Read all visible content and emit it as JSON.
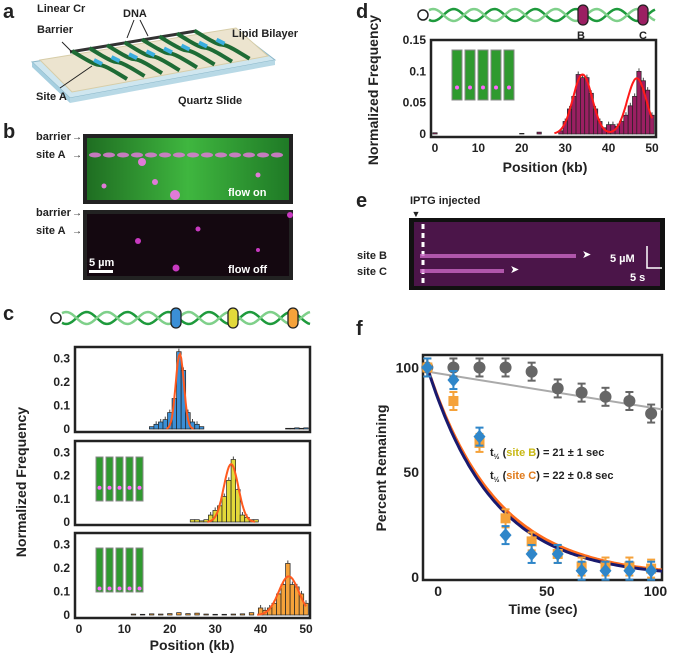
{
  "panels": {
    "a": {
      "label": "a",
      "annotations": {
        "barrier": "Linear Cr",
        "barrier2": "Barrier",
        "dna": "DNA",
        "bilayer": "Lipid Bilayer",
        "site": "Site A",
        "slide": "Quartz Slide"
      }
    },
    "b": {
      "label": "b",
      "barrier": "barrier",
      "site": "site A",
      "top_caption": "flow on",
      "bottom_caption": "flow off",
      "scale_bar": "5 µm"
    },
    "c": {
      "label": "c",
      "site_colors": [
        "#3b8fd6",
        "#e2d93a",
        "#f5a23a"
      ]
    },
    "d": {
      "label": "d",
      "site_b": "B",
      "site_c": "C",
      "site_color": "#9b1f62"
    },
    "e": {
      "label": "e",
      "event": "IPTG injected",
      "site_b": "site B",
      "site_c": "site C",
      "scale_y": "5 µM",
      "scale_x": "5 s"
    },
    "f": {
      "label": "f",
      "t_half": "t",
      "t_half_sub": "½",
      "site_b": "site B",
      "site_c": "site C",
      "stat_b": ") = 21 ± 1 sec",
      "stat_c": ") = 22 ± 0.8 sec",
      "open": " (",
      "site_b_color": "#c8b814",
      "site_c_color": "#e07a1a"
    }
  },
  "chart_data": [
    {
      "type": "bar",
      "panel": "c",
      "subplot": 1,
      "xlabel": "Position (kb)",
      "ylabel": "Normalized Frequency",
      "xlim": [
        0,
        50
      ],
      "ylim": [
        0,
        0.35
      ],
      "xticks": [
        "0",
        "10",
        "20",
        "30",
        "40",
        "50"
      ],
      "yticks": [
        "0",
        "0.1",
        "0.2",
        "0.3"
      ],
      "bar_color": "#3b8fd6",
      "fit_color": "#ff5a1f",
      "x": [
        16,
        17,
        18,
        19,
        20,
        21,
        22,
        23,
        24,
        25,
        26,
        27,
        46,
        47,
        48,
        49,
        50
      ],
      "values": [
        0.01,
        0.02,
        0.03,
        0.04,
        0.07,
        0.13,
        0.33,
        0.25,
        0.07,
        0.03,
        0.02,
        0.01,
        0.003,
        0.003,
        0.005,
        0.003,
        0.005
      ],
      "fit": {
        "type": "gaussian",
        "mean": 22.2,
        "sd": 0.9,
        "amplitude": 0.32
      }
    },
    {
      "type": "bar",
      "panel": "c",
      "subplot": 2,
      "xlim": [
        0,
        50
      ],
      "ylim": [
        0,
        0.35
      ],
      "yticks": [
        "0",
        "0.1",
        "0.2",
        "0.3"
      ],
      "bar_color": "#e2d93a",
      "fit_color": "#ff5a1f",
      "x": [
        25,
        26,
        27,
        28,
        29,
        30,
        31,
        32,
        33,
        34,
        35,
        36,
        37,
        38,
        39
      ],
      "values": [
        0.01,
        0.01,
        0.005,
        0.01,
        0.03,
        0.05,
        0.07,
        0.11,
        0.18,
        0.27,
        0.14,
        0.03,
        0.02,
        0.01,
        0.01
      ],
      "fit": {
        "type": "gaussian",
        "mean": 33.5,
        "sd": 1.6,
        "amplitude": 0.25
      }
    },
    {
      "type": "bar",
      "panel": "c",
      "subplot": 3,
      "xlim": [
        0,
        50
      ],
      "ylim": [
        0,
        0.35
      ],
      "yticks": [
        "0",
        "0.1",
        "0.2",
        "0.3"
      ],
      "bar_color": "#f5a23a",
      "fit_color": "#ff5a1f",
      "x": [
        12,
        14,
        16,
        18,
        20,
        22,
        24,
        26,
        28,
        30,
        32,
        34,
        36,
        38,
        40,
        41,
        42,
        43,
        44,
        45,
        46,
        47,
        48,
        49,
        50
      ],
      "values": [
        0.004,
        0.003,
        0.005,
        0.004,
        0.006,
        0.01,
        0.006,
        0.008,
        0.004,
        0.003,
        0.003,
        0.004,
        0.005,
        0.01,
        0.03,
        0.02,
        0.03,
        0.05,
        0.09,
        0.13,
        0.22,
        0.13,
        0.12,
        0.09,
        0.05
      ],
      "fit": {
        "type": "gaussian",
        "mean": 46.2,
        "sd": 2.2,
        "amplitude": 0.165
      }
    },
    {
      "type": "bar",
      "panel": "d",
      "xlabel": "Position (kb)",
      "ylabel": "Normalized Frequency",
      "xlim": [
        0,
        50
      ],
      "ylim": [
        0,
        0.15
      ],
      "xticks": [
        "0",
        "10",
        "20",
        "30",
        "40",
        "50"
      ],
      "yticks": [
        "0",
        "0.05",
        "0.1",
        "0.15"
      ],
      "bar_color": "#9b1f62",
      "fit_color": "#ff1a1a",
      "x": [
        0,
        20,
        24,
        29,
        30,
        31,
        32,
        33,
        34,
        35,
        36,
        37,
        38,
        39,
        40,
        41,
        42,
        43,
        44,
        45,
        46,
        47,
        48,
        49,
        50
      ],
      "values": [
        0.002,
        0.001,
        0.003,
        0.005,
        0.02,
        0.04,
        0.06,
        0.095,
        0.09,
        0.09,
        0.065,
        0.04,
        0.02,
        0.01,
        0.015,
        0.015,
        0.012,
        0.02,
        0.03,
        0.045,
        0.06,
        0.1,
        0.085,
        0.07,
        0.03
      ],
      "fit": {
        "type": "double-gaussian",
        "means": [
          34,
          46.5
        ],
        "sd": 2.2,
        "amplitudes": [
          0.095,
          0.089
        ]
      }
    },
    {
      "type": "scatter",
      "panel": "f",
      "xlabel": "Time (sec)",
      "ylabel": "Percent Remaining",
      "xlim": [
        -7,
        103
      ],
      "ylim": [
        0,
        105
      ],
      "xticks": [
        "0",
        "50",
        "100"
      ],
      "yticks": [
        "0",
        "50",
        "100"
      ],
      "series": [
        {
          "color": "#666666",
          "marker": "circle",
          "x": [
            -5,
            7,
            19,
            31,
            43,
            55,
            66,
            77,
            88,
            98
          ],
          "y": [
            100,
            100,
            100,
            100,
            98,
            90,
            88,
            86,
            84,
            78
          ],
          "fit_color": "#aaaaaa",
          "fit": {
            "type": "linear",
            "start": 98,
            "end": 80
          }
        },
        {
          "color": "#f5a23a",
          "marker": "square",
          "x": [
            -5,
            7,
            19,
            31,
            43,
            55,
            66,
            77,
            88,
            98
          ],
          "y": [
            100,
            84,
            64,
            28,
            17,
            11,
            5,
            5,
            5,
            4
          ],
          "fit_color": "#ff6a1a",
          "fit": {
            "type": "exponential",
            "t_half": 22
          }
        },
        {
          "color": "#2f86c9",
          "marker": "diamond",
          "x": [
            -5,
            7,
            19,
            31,
            43,
            55,
            66,
            77,
            88,
            98
          ],
          "y": [
            100,
            94,
            67,
            20,
            11,
            11,
            3,
            3,
            3,
            3
          ],
          "fit_color": "#1a1a6e",
          "fit": {
            "type": "exponential",
            "t_half": 21
          }
        }
      ]
    }
  ]
}
